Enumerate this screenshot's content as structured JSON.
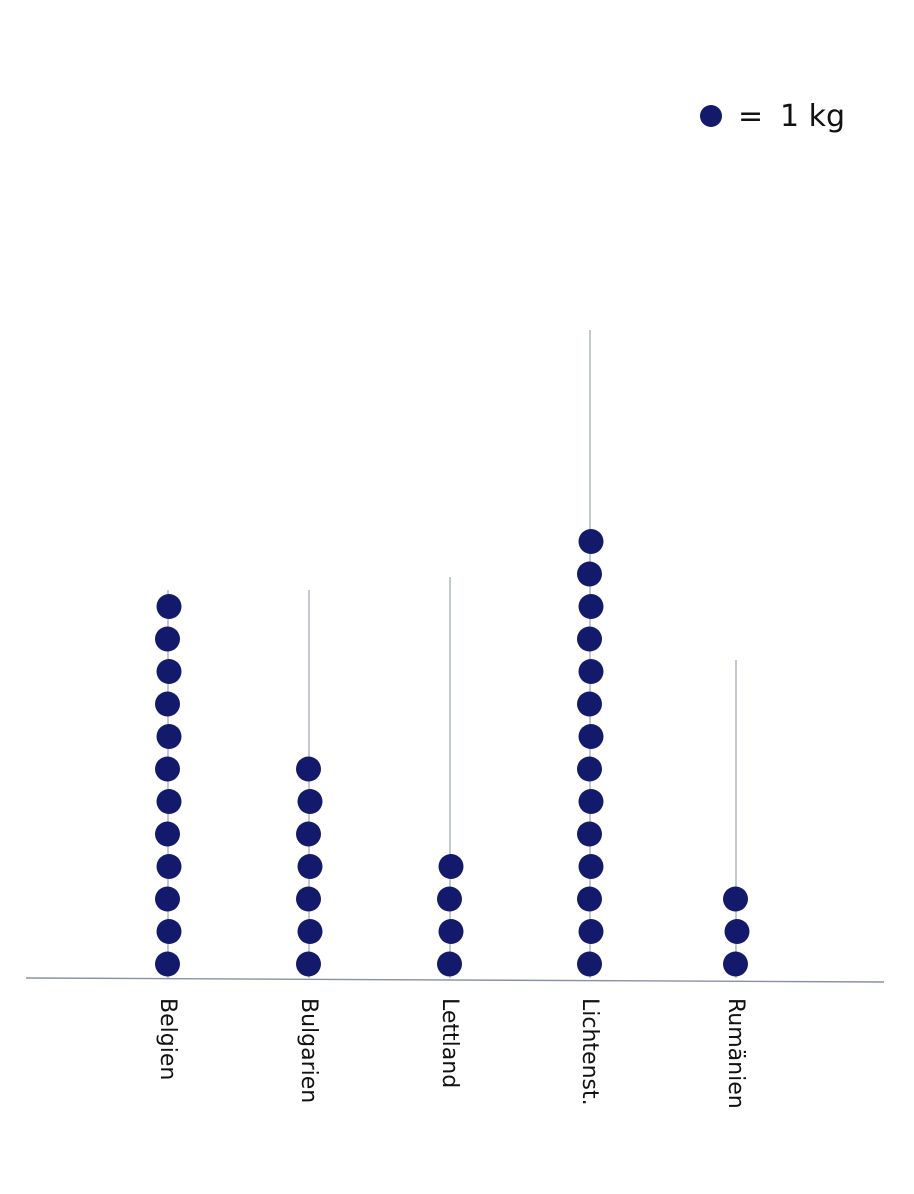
{
  "chart_data": {
    "type": "dot",
    "title": "",
    "xlabel": "",
    "ylabel": "",
    "categories": [
      "Belgien",
      "Bulgarien",
      "Lettland",
      "Lichtenstein",
      "Rumänien"
    ],
    "tick_labels": [
      "Belgien",
      "Bulgarien",
      "Lettland",
      "Lichtenst.",
      "Rumänien"
    ],
    "values": [
      12,
      7,
      4,
      14,
      3
    ],
    "unit_per_dot": 1,
    "unit": "kg",
    "legend": {
      "equals": "=",
      "text": "1 kg",
      "position": "top-right"
    },
    "dot_color": "#141a6b",
    "axis_color": "#8a8fa8",
    "grid": false
  }
}
